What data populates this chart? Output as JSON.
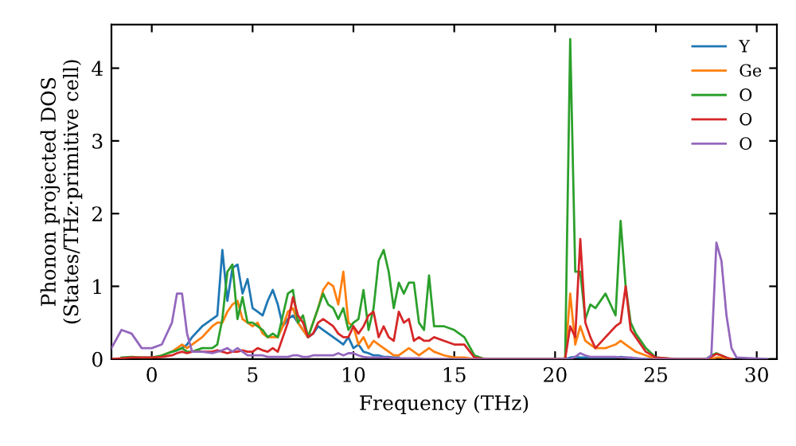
{
  "chart_data": {
    "type": "line",
    "xlabel": "Frequency (THz)",
    "ylabel": "Phonon projected DOS\n(States/THz·primitive cell)",
    "x": [
      -2,
      -1.5,
      -1,
      -0.5,
      0,
      0.5,
      1,
      1.25,
      1.5,
      1.75,
      2,
      2.5,
      3,
      3.25,
      3.5,
      3.75,
      4,
      4.25,
      4.5,
      4.75,
      5,
      5.25,
      5.5,
      5.75,
      6,
      6.25,
      6.5,
      6.75,
      7,
      7.25,
      7.5,
      7.75,
      8,
      8.25,
      8.5,
      8.75,
      9,
      9.25,
      9.5,
      9.75,
      10,
      10.25,
      10.5,
      10.75,
      11,
      11.25,
      11.5,
      11.75,
      12,
      12.25,
      12.5,
      12.75,
      13,
      13.25,
      13.5,
      13.75,
      14,
      14.5,
      15,
      15.5,
      16,
      16.5,
      18,
      20,
      20.5,
      20.75,
      21,
      21.25,
      21.5,
      21.75,
      22,
      22.5,
      23,
      23.25,
      23.5,
      23.75,
      24,
      24.5,
      25,
      26,
      27.5,
      27.75,
      28,
      28.25,
      28.5,
      28.75,
      29,
      30.5
    ],
    "series": [
      {
        "name": "Y",
        "color": "#1f77b4",
        "values": [
          null,
          null,
          null,
          null,
          null,
          null,
          0.1,
          0.12,
          0.15,
          0.2,
          0.3,
          0.45,
          0.55,
          0.6,
          1.5,
          0.8,
          1.25,
          1.3,
          0.9,
          1.1,
          0.7,
          0.65,
          0.6,
          0.8,
          0.95,
          0.75,
          0.45,
          0.55,
          0.6,
          0.5,
          0.4,
          0.3,
          0.35,
          0.45,
          0.4,
          0.35,
          0.3,
          0.25,
          0.2,
          0.3,
          0.15,
          0.2,
          0.1,
          0.08,
          0.05,
          0.05,
          0.03,
          0.03,
          0.02,
          0.02,
          null,
          null,
          null,
          null,
          null,
          null,
          null,
          null,
          0,
          0,
          0,
          0,
          0,
          0,
          0,
          0.02,
          0.03,
          0.02,
          0.02,
          0.02,
          0.02,
          0.02,
          0.02,
          0.03,
          0.02,
          0.01,
          0.01,
          0,
          null,
          null,
          null,
          null,
          null,
          null,
          null,
          null,
          null,
          null
        ]
      },
      {
        "name": "Ge",
        "color": "#ff7f0e",
        "values": [
          null,
          null,
          null,
          null,
          null,
          0.05,
          0.1,
          0.15,
          0.2,
          0.15,
          0.2,
          0.3,
          0.45,
          0.5,
          0.5,
          0.65,
          0.75,
          0.8,
          0.55,
          0.5,
          0.45,
          0.5,
          0.35,
          0.3,
          0.3,
          0.3,
          0.45,
          0.65,
          0.7,
          0.5,
          0.4,
          0.3,
          0.5,
          0.7,
          0.95,
          1.05,
          1.0,
          0.75,
          1.2,
          0.5,
          0.45,
          0.2,
          0.3,
          0.15,
          0.25,
          0.2,
          0.15,
          0.1,
          0.05,
          0.05,
          0.1,
          0.15,
          0.1,
          0.05,
          0.1,
          0.15,
          0.1,
          0.05,
          0.02,
          0.02,
          0,
          0,
          0,
          0,
          0,
          0.9,
          0.2,
          0.45,
          0.25,
          0.2,
          0.15,
          0.15,
          0.2,
          0.25,
          0.2,
          0.15,
          0.1,
          0.05,
          0,
          0,
          0,
          0,
          0.02,
          0.02,
          0,
          0,
          null,
          null
        ]
      },
      {
        "name": "O",
        "color": "#2ca02c",
        "values": [
          null,
          0.02,
          0.03,
          0.02,
          0.02,
          0.05,
          0.1,
          0.12,
          0.15,
          0.1,
          0.1,
          0.15,
          0.15,
          0.2,
          0.55,
          1.2,
          1.3,
          0.55,
          0.85,
          0.5,
          0.5,
          0.45,
          0.4,
          0.3,
          0.35,
          0.3,
          0.6,
          0.9,
          0.95,
          0.5,
          0.6,
          0.3,
          0.5,
          0.7,
          0.9,
          0.75,
          0.7,
          0.55,
          0.7,
          0.4,
          0.5,
          0.55,
          0.95,
          0.4,
          0.7,
          1.35,
          1.5,
          1.2,
          0.7,
          1.05,
          0.9,
          1.05,
          1.05,
          0.5,
          0.4,
          1.15,
          0.45,
          0.45,
          0.4,
          0.3,
          0.05,
          0,
          0,
          0,
          0,
          4.4,
          1.2,
          1.2,
          0.55,
          0.75,
          0.7,
          0.9,
          0.6,
          1.9,
          1.0,
          0.5,
          0.35,
          0.15,
          0.02,
          0,
          0,
          0.05,
          0.08,
          0.05,
          0.02,
          null,
          null,
          null
        ]
      },
      {
        "name": "O",
        "color": "#d62728",
        "values": [
          0,
          0.01,
          0.02,
          0.02,
          0.02,
          0.03,
          0.05,
          0.08,
          0.1,
          0.08,
          0.1,
          0.1,
          0.1,
          0.12,
          0.1,
          0.08,
          0.1,
          0.1,
          0.12,
          0.1,
          0.1,
          0.15,
          0.12,
          0.1,
          0.15,
          0.1,
          0.3,
          0.5,
          0.85,
          0.6,
          0.5,
          0.3,
          0.35,
          0.5,
          0.55,
          0.5,
          0.45,
          0.35,
          0.3,
          0.3,
          0.45,
          0.35,
          0.45,
          0.6,
          0.65,
          0.3,
          0.45,
          0.3,
          0.25,
          0.65,
          0.5,
          0.55,
          0.25,
          0.3,
          0.25,
          0.25,
          0.3,
          0.25,
          0.2,
          0.2,
          0.02,
          0,
          0,
          0,
          0,
          0.45,
          0.3,
          1.65,
          0.5,
          0.3,
          0.15,
          0.3,
          0.45,
          0.5,
          1.0,
          0.4,
          0.3,
          0.1,
          0.02,
          0,
          0,
          0.03,
          0.07,
          0.05,
          0.02,
          0,
          null,
          null
        ]
      },
      {
        "name": "O",
        "color": "#9467bd",
        "values": [
          0.15,
          0.4,
          0.35,
          0.15,
          0.15,
          0.2,
          0.5,
          0.9,
          0.9,
          0.35,
          0.1,
          0.1,
          0.08,
          0.1,
          0.12,
          0.15,
          0.1,
          0.15,
          0.1,
          0.05,
          0.05,
          0.05,
          0.05,
          0.03,
          0.03,
          0.03,
          0.03,
          0.03,
          0.05,
          0.05,
          0.03,
          0.03,
          0.05,
          0.05,
          0.05,
          0.05,
          0.05,
          0.08,
          0.05,
          0.08,
          0.08,
          0.05,
          0.03,
          0.02,
          0.02,
          0.02,
          0.02,
          0.02,
          0.01,
          0.01,
          0.01,
          0.01,
          0.01,
          0.01,
          0,
          0,
          0,
          0,
          0,
          0,
          0,
          0,
          0,
          0,
          0,
          0,
          0.03,
          0.08,
          0.05,
          0.03,
          0.03,
          0.03,
          0.03,
          0.02,
          0.02,
          0.02,
          0.01,
          0,
          0,
          0,
          0,
          0.05,
          1.6,
          1.35,
          0.6,
          0.15,
          0.02,
          0
        ]
      }
    ],
    "xlim": [
      -2,
      31
    ],
    "xticks": [
      0,
      5,
      10,
      15,
      20,
      25,
      30
    ],
    "ylim": [
      0,
      4.6
    ],
    "yticks": [
      0,
      1,
      2,
      3,
      4
    ],
    "legend": "top right",
    "grid": false
  }
}
